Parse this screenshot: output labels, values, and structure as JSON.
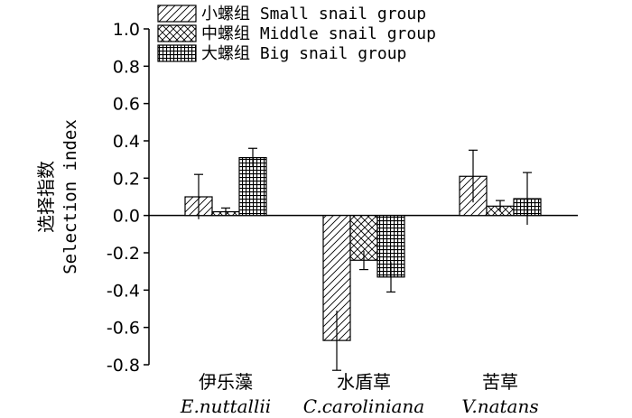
{
  "chart_data": {
    "type": "bar",
    "ylabel_cn": "选择指数",
    "ylabel_en": "Selection index",
    "ylim": [
      -0.8,
      1.0
    ],
    "yticks": [
      "1.0",
      "0.8",
      "0.6",
      "0.4",
      "0.2",
      "0.0",
      "-0.2",
      "-0.4",
      "-0.6",
      "-0.8"
    ],
    "ytick_values": [
      1.0,
      0.8,
      0.6,
      0.4,
      0.2,
      0.0,
      -0.2,
      -0.4,
      -0.6,
      -0.8
    ],
    "categories": [
      {
        "cn": "伊乐藻",
        "en": "E.nuttallii"
      },
      {
        "cn": "水盾草",
        "en": "C.caroliniana"
      },
      {
        "cn": "苦草",
        "en": "V.natans"
      }
    ],
    "series": [
      {
        "name": "小螺组 Small snail group",
        "pattern": "diagonal",
        "values": [
          0.1,
          -0.67,
          0.21
        ],
        "errors": [
          0.12,
          0.16,
          0.14
        ]
      },
      {
        "name": "中螺组 Middle snail group",
        "pattern": "crosshatch",
        "values": [
          0.02,
          -0.24,
          0.05
        ],
        "errors": [
          0.02,
          0.05,
          0.03
        ]
      },
      {
        "name": "大螺组 Big snail group",
        "pattern": "grid",
        "values": [
          0.31,
          -0.33,
          0.09
        ],
        "errors": [
          0.05,
          0.08,
          0.14
        ]
      }
    ],
    "legend_position": "top-left",
    "grid": false
  }
}
